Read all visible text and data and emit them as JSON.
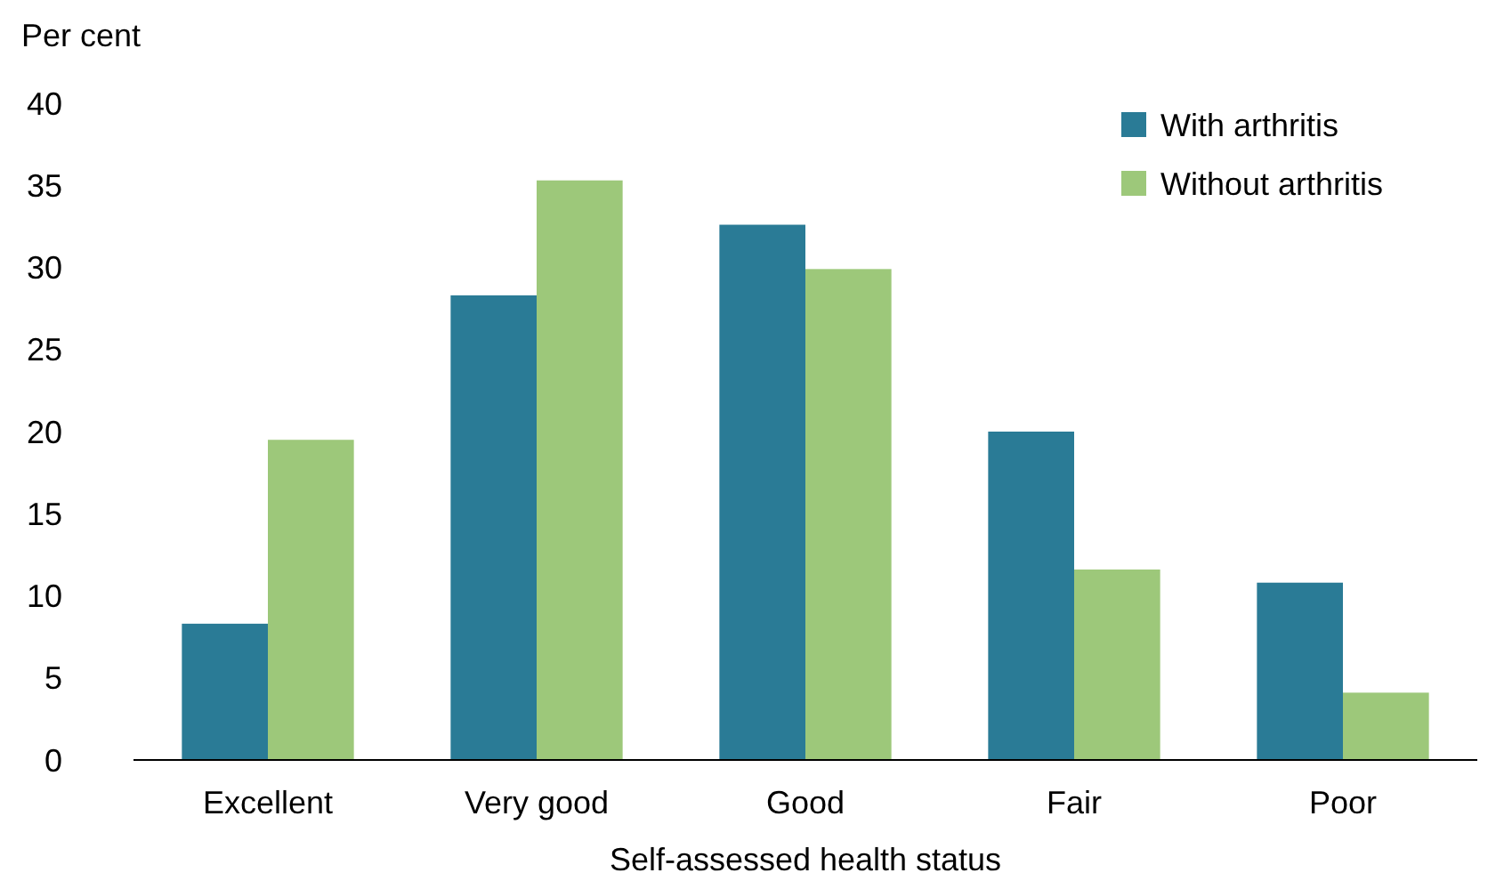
{
  "chart_data": {
    "type": "bar",
    "ylabel": "Per cent",
    "xlabel": "Self-assessed health status",
    "categories": [
      "Excellent",
      "Very good",
      "Good",
      "Fair",
      "Poor"
    ],
    "series": [
      {
        "name": "With arthritis",
        "color": "#2a7b96",
        "values": [
          8.3,
          28.3,
          32.6,
          20.0,
          10.8
        ]
      },
      {
        "name": "Without arthritis",
        "color": "#9dc87a",
        "values": [
          19.5,
          35.3,
          29.9,
          11.6,
          4.1
        ]
      }
    ],
    "ylim": [
      0,
      40
    ],
    "yticks": [
      0,
      5,
      10,
      15,
      20,
      25,
      30,
      35,
      40
    ],
    "grid": false,
    "legend": "top right"
  }
}
